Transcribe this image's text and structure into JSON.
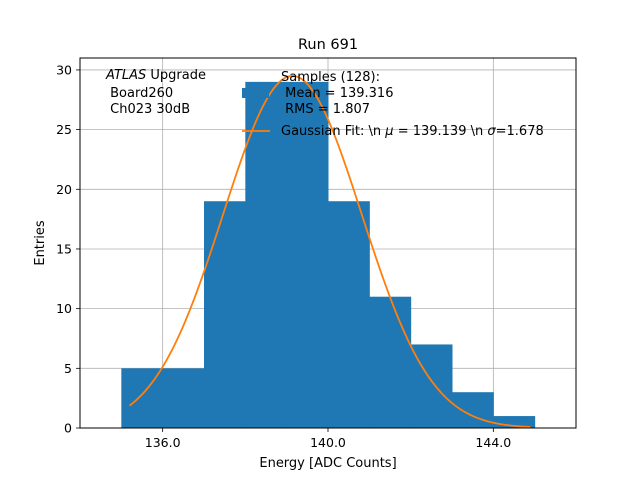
{
  "chart_data": {
    "type": "bar",
    "title": "Run 691",
    "xlabel": "Energy [ADC Counts]",
    "ylabel": "Entries",
    "xlim": [
      134,
      146
    ],
    "ylim": [
      0,
      31
    ],
    "grid": true,
    "xticks": [
      136.0,
      140.0,
      144.0
    ],
    "xtick_labels": [
      "136.0",
      "140.0",
      "144.0"
    ],
    "yticks": [
      0,
      5,
      10,
      15,
      20,
      25,
      30
    ],
    "ytick_labels": [
      "0",
      "5",
      "10",
      "15",
      "20",
      "25",
      "30"
    ],
    "colors": {
      "bars": "#1f77b4",
      "fit": "#ff7f0e",
      "grid": "#b0b0b0"
    },
    "histogram": {
      "name": "Samples (128):",
      "bin_edges": [
        135,
        136,
        137,
        138,
        139,
        140,
        141,
        142,
        143,
        144,
        145
      ],
      "counts": [
        5,
        5,
        19,
        29,
        29,
        19,
        11,
        7,
        3,
        1
      ]
    },
    "fit": {
      "name": "Gaussian Fit: \\n $\\mu$ = 139.139 \\n $\\sigma$=1.678",
      "mu": 139.139,
      "sigma": 1.678,
      "amplitude": 29.5,
      "x_range": [
        135.2,
        144.9
      ]
    },
    "legend": {
      "location": "top-right",
      "hist_lines": [
        "Samples (128):",
        " Mean = 139.316",
        " RMS = 1.807"
      ],
      "fit_prefix": "Gaussian Fit: \\n ",
      "fit_mu_sym": "μ",
      "fit_mid": " = 139.139 \\n ",
      "fit_sigma_sym": "σ",
      "fit_suffix": "=1.678"
    },
    "annotation": {
      "location": "top-left",
      "atlas": "ATLAS",
      "atlas_suffix": " Upgrade",
      "line2": " Board260",
      "line3": " Ch023 30dB"
    }
  }
}
